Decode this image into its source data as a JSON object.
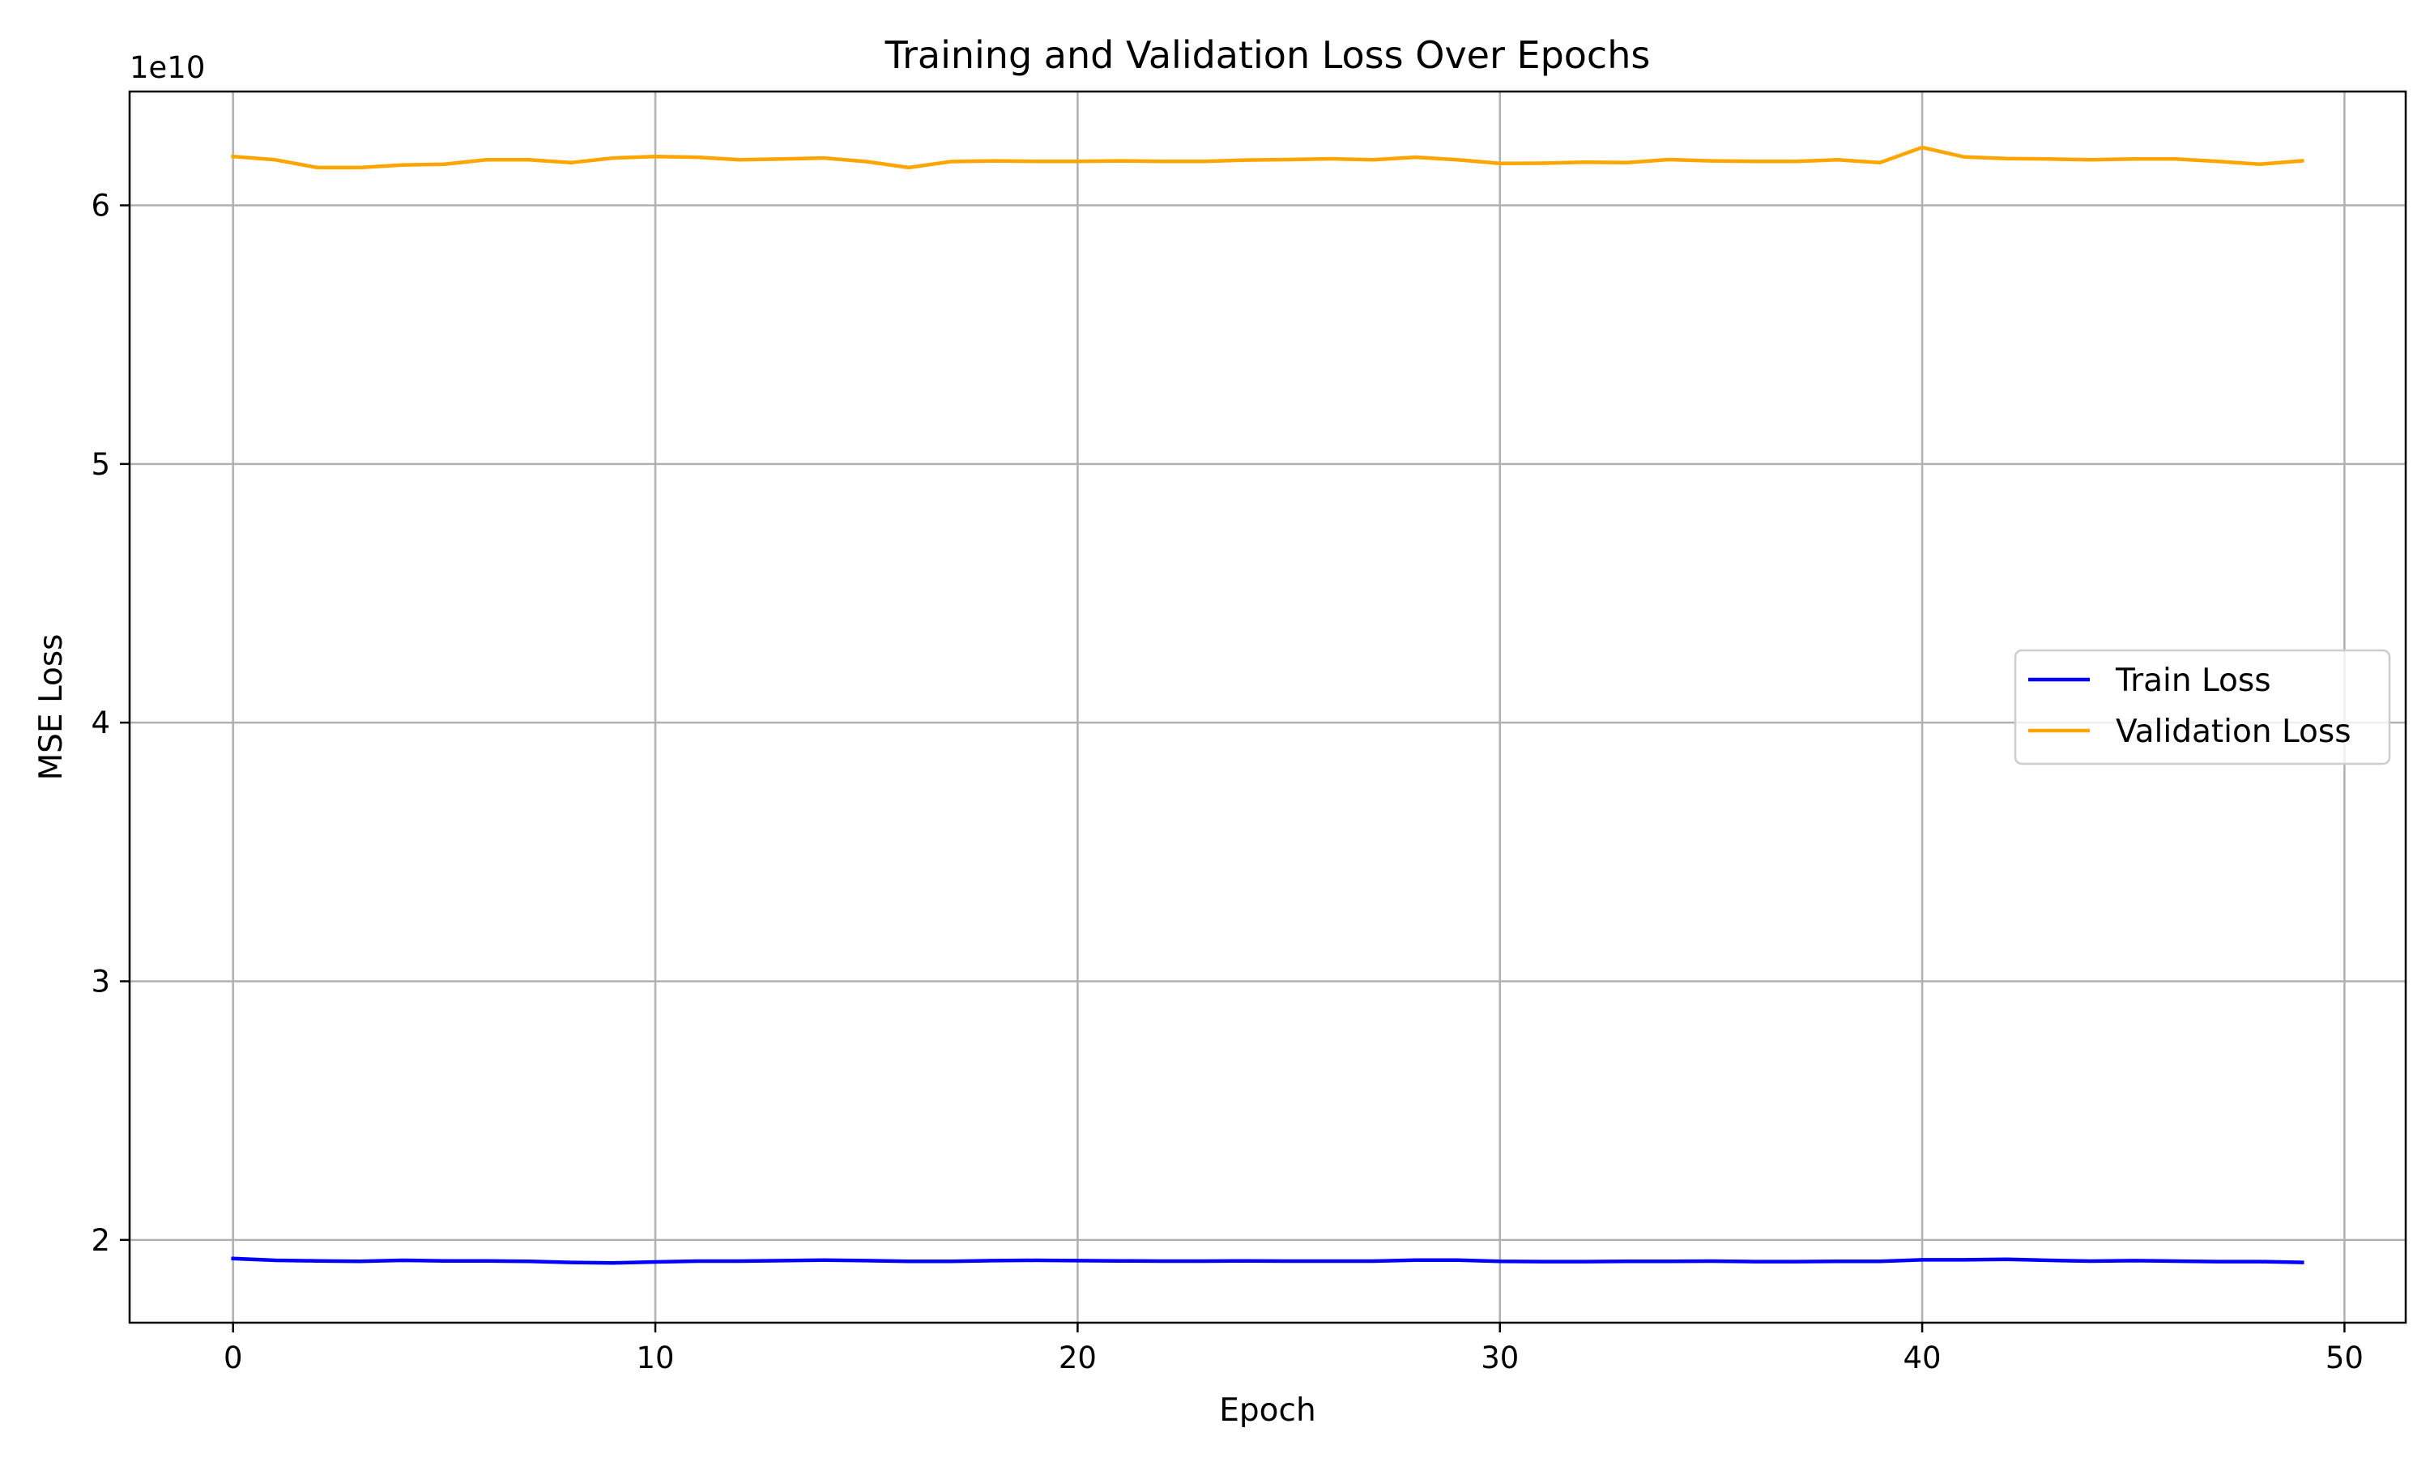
{
  "chart_data": {
    "type": "line",
    "title": "Training and Validation Loss Over Epochs",
    "xlabel": "Epoch",
    "ylabel": "MSE Loss",
    "y_offset_label": "1e10",
    "y_multiplier": 10000000000,
    "xlim": [
      -2.45,
      51.45
    ],
    "ylim": [
      16800000000,
      64400000000
    ],
    "xticks": [
      0,
      10,
      20,
      30,
      40,
      50
    ],
    "xtick_labels": [
      "0",
      "10",
      "20",
      "30",
      "40",
      "50"
    ],
    "yticks": [
      20000000000,
      30000000000,
      40000000000,
      50000000000,
      60000000000
    ],
    "ytick_labels": [
      "2",
      "3",
      "4",
      "5",
      "6"
    ],
    "grid": true,
    "legend_position": "center-right",
    "x": [
      0,
      1,
      2,
      3,
      4,
      5,
      6,
      7,
      8,
      9,
      10,
      11,
      12,
      13,
      14,
      15,
      16,
      17,
      18,
      19,
      20,
      21,
      22,
      23,
      24,
      25,
      26,
      27,
      28,
      29,
      30,
      31,
      32,
      33,
      34,
      35,
      36,
      37,
      38,
      39,
      40,
      41,
      42,
      43,
      44,
      45,
      46,
      47,
      48,
      49
    ],
    "series": [
      {
        "name": "Train Loss",
        "color": "#0000ff",
        "values": [
          19280000000,
          19210000000,
          19190000000,
          19170000000,
          19210000000,
          19190000000,
          19190000000,
          19170000000,
          19130000000,
          19110000000,
          19150000000,
          19180000000,
          19180000000,
          19200000000,
          19220000000,
          19200000000,
          19170000000,
          19170000000,
          19200000000,
          19210000000,
          19200000000,
          19190000000,
          19180000000,
          19180000000,
          19190000000,
          19180000000,
          19180000000,
          19180000000,
          19220000000,
          19220000000,
          19170000000,
          19160000000,
          19160000000,
          19170000000,
          19170000000,
          19180000000,
          19160000000,
          19160000000,
          19170000000,
          19170000000,
          19230000000,
          19230000000,
          19250000000,
          19210000000,
          19180000000,
          19200000000,
          19180000000,
          19160000000,
          19160000000,
          19130000000
        ]
      },
      {
        "name": "Validation Loss",
        "color": "#ffa500",
        "values": [
          61890000000,
          61760000000,
          61460000000,
          61460000000,
          61560000000,
          61590000000,
          61760000000,
          61760000000,
          61650000000,
          61830000000,
          61890000000,
          61860000000,
          61760000000,
          61790000000,
          61830000000,
          61690000000,
          61460000000,
          61690000000,
          61720000000,
          61700000000,
          61700000000,
          61720000000,
          61700000000,
          61700000000,
          61750000000,
          61770000000,
          61800000000,
          61760000000,
          61860000000,
          61760000000,
          61620000000,
          61630000000,
          61670000000,
          61650000000,
          61770000000,
          61720000000,
          61700000000,
          61700000000,
          61760000000,
          61650000000,
          62240000000,
          61870000000,
          61810000000,
          61790000000,
          61760000000,
          61790000000,
          61790000000,
          61700000000,
          61590000000,
          61720000000
        ]
      }
    ]
  }
}
